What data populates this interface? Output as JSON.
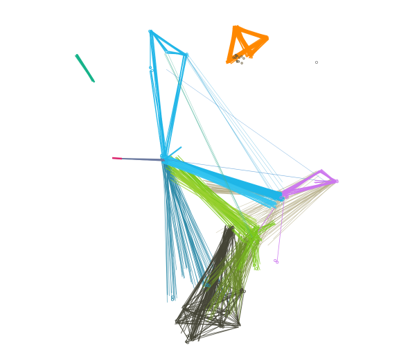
{
  "colors": {
    "background": "#ffffff",
    "teal_green": "#16b38a",
    "orange": "#ff8800",
    "sky_blue": "#1fb6e8",
    "deep_teal": "#2a8aa8",
    "lime": "#7bc81a",
    "olive": "#6a8a2a",
    "dark_olive": "#444436",
    "violet": "#cc77ee",
    "tan": "#b8b08c",
    "pink": "#e0206a",
    "slate": "#6c7aa0",
    "small_gray": "#888888"
  },
  "groups": [
    {
      "id": "teal-green",
      "color_key": "teal_green"
    },
    {
      "id": "orange",
      "color_key": "orange"
    },
    {
      "id": "sky-blue",
      "color_key": "sky_blue"
    },
    {
      "id": "deep-teal",
      "color_key": "deep_teal"
    },
    {
      "id": "lime",
      "color_key": "lime"
    },
    {
      "id": "olive",
      "color_key": "olive"
    },
    {
      "id": "dark-olive",
      "color_key": "dark_olive"
    },
    {
      "id": "violet",
      "color_key": "violet"
    },
    {
      "id": "tan",
      "color_key": "tan"
    },
    {
      "id": "pink",
      "color_key": "pink"
    },
    {
      "id": "small-gray",
      "color_key": "small_gray"
    }
  ]
}
